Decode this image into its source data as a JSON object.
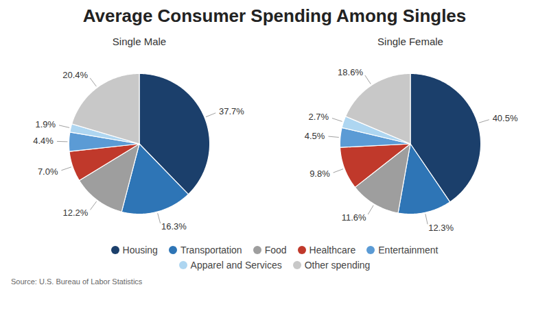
{
  "title": "Average Consumer Spending Among Singles",
  "annotations": [
    "Source: U.S. Bureau of Labor Statistics"
  ],
  "legend": "bottom",
  "chart_data": [
    {
      "type": "pie",
      "title": "Single Male",
      "categories": [
        "Housing",
        "Transportation",
        "Food",
        "Healthcare",
        "Entertainment",
        "Apparel and Services",
        "Other spending"
      ],
      "values": [
        37.7,
        16.3,
        12.2,
        7.0,
        4.4,
        1.9,
        20.4
      ],
      "value_labels": [
        "37.7%",
        "16.3%",
        "12.2%",
        "7.0%",
        "4.4%",
        "1.9%",
        "20.4%"
      ],
      "colors": [
        "#1b3f6b",
        "#2e75b6",
        "#9e9e9e",
        "#c0392b",
        "#5b9bd5",
        "#aed6f1",
        "#c8c8c8"
      ]
    },
    {
      "type": "pie",
      "title": "Single Female",
      "categories": [
        "Housing",
        "Transportation",
        "Food",
        "Healthcare",
        "Entertainment",
        "Apparel and Services",
        "Other spending"
      ],
      "values": [
        40.5,
        12.3,
        11.6,
        9.8,
        4.5,
        2.7,
        18.6
      ],
      "value_labels": [
        "40.5%",
        "12.3%",
        "11.6%",
        "9.8%",
        "4.5%",
        "2.7%",
        "18.6%"
      ],
      "colors": [
        "#1b3f6b",
        "#2e75b6",
        "#9e9e9e",
        "#c0392b",
        "#5b9bd5",
        "#aed6f1",
        "#c8c8c8"
      ]
    }
  ]
}
